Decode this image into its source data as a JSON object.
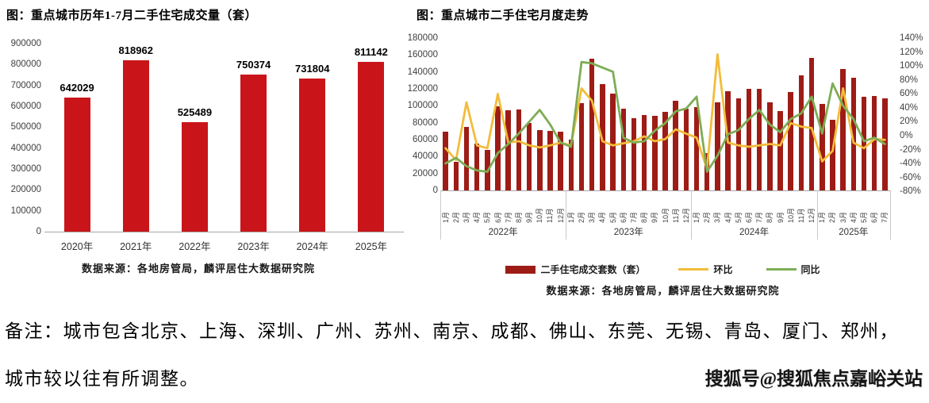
{
  "chart_data": [
    {
      "id": "annual",
      "type": "bar",
      "title": "图：重点城市历年1-7月二手住宅成交量（套）",
      "categories": [
        "2020年",
        "2021年",
        "2022年",
        "2023年",
        "2024年",
        "2025年"
      ],
      "values": [
        642029,
        818962,
        525489,
        750374,
        731804,
        811142
      ],
      "value_labels": [
        "642029",
        "818962",
        "525489",
        "750374",
        "731804",
        "811142"
      ],
      "ylabel": "",
      "xlabel": "",
      "ylim": [
        0,
        900000
      ],
      "yticks": [
        0,
        100000,
        200000,
        300000,
        400000,
        500000,
        600000,
        700000,
        800000,
        900000
      ],
      "bar_color": "#c9151a",
      "grid": "off",
      "source": "数据来源：各地房管局，麟评居住大数据研究院"
    },
    {
      "id": "monthly",
      "type": "bar+line",
      "title": "图：重点城市二手住宅月度走势",
      "categories": [
        "1月",
        "2月",
        "3月",
        "4月",
        "5月",
        "6月",
        "7月",
        "8月",
        "9月",
        "10月",
        "11月",
        "12月",
        "1月",
        "2月",
        "3月",
        "4月",
        "5月",
        "6月",
        "7月",
        "8月",
        "9月",
        "10月",
        "11月",
        "12月",
        "1月",
        "2月",
        "3月",
        "4月",
        "5月",
        "6月",
        "7月",
        "8月",
        "9月",
        "10月",
        "11月",
        "12月",
        "1月",
        "2月",
        "3月",
        "4月",
        "5月",
        "6月",
        "7月"
      ],
      "year_groups": [
        {
          "label": "2022年",
          "months": 12
        },
        {
          "label": "2023年",
          "months": 12
        },
        {
          "label": "2024年",
          "months": 12
        },
        {
          "label": "2025年",
          "months": 7
        }
      ],
      "series": [
        {
          "name": "二手住宅成交套数（套）",
          "type": "bar",
          "axis": "left",
          "color": "#9e1c16",
          "values": [
            69000,
            34000,
            75000,
            55000,
            48000,
            99000,
            95000,
            96000,
            80000,
            71000,
            70000,
            69000,
            60000,
            103000,
            156000,
            126000,
            114000,
            96500,
            85000,
            89000,
            88000,
            92500,
            106000,
            96500,
            98000,
            44000,
            104000,
            117000,
            109000,
            120000,
            120000,
            104000,
            93500,
            116000,
            136000,
            157000,
            102000,
            83000,
            143000,
            133000,
            111000,
            112000,
            109000
          ]
        },
        {
          "name": "环比",
          "type": "line",
          "axis": "right",
          "color": "#f3bc3b",
          "values": [
            -18,
            -35,
            48,
            -14,
            -18,
            60,
            -10,
            -8,
            -14,
            -17,
            -14,
            -10,
            -14,
            68,
            50,
            -8,
            -14,
            -11,
            -8,
            -1,
            -8,
            -5,
            9,
            3,
            -3,
            -48,
            117,
            -10,
            -14,
            -16,
            -14,
            -12,
            -14,
            18,
            13,
            11,
            -37,
            -22,
            68,
            -10,
            -18,
            -5,
            -6
          ]
        },
        {
          "name": "同比",
          "type": "line",
          "axis": "right",
          "color": "#7dad55",
          "values": [
            -40,
            -32,
            -44,
            -50,
            -52,
            -25,
            -12,
            3,
            20,
            37,
            16,
            -10,
            -16,
            106,
            104,
            98,
            92,
            -3,
            -10,
            -8,
            7,
            18,
            35,
            39,
            56,
            -52,
            -29,
            2,
            8,
            24,
            37,
            16,
            5,
            24,
            32,
            56,
            3,
            75,
            43,
            24,
            -8,
            -3,
            -12
          ]
        }
      ],
      "left_axis": {
        "lim": [
          0,
          180000
        ],
        "ticks": [
          0,
          20000,
          40000,
          60000,
          80000,
          100000,
          120000,
          140000,
          160000,
          180000
        ]
      },
      "right_axis": {
        "lim": [
          -80,
          140
        ],
        "ticks": [
          140,
          120,
          100,
          80,
          60,
          40,
          20,
          0,
          -20,
          -40,
          -60,
          -80
        ],
        "suffix": "%"
      },
      "grid": "off",
      "legend_position": "bottom",
      "source": "数据来源：各地房管局，麟评居住大数据研究院"
    }
  ],
  "footer": {
    "note_line1": "备注：城市包含北京、上海、深圳、广州、苏州、南京、成都、佛山、东莞、无锡、青岛、厦门、郑州，",
    "note_line2": "城市较以往有所调整。",
    "watermark": "搜狐号@搜狐焦点嘉峪关站"
  }
}
